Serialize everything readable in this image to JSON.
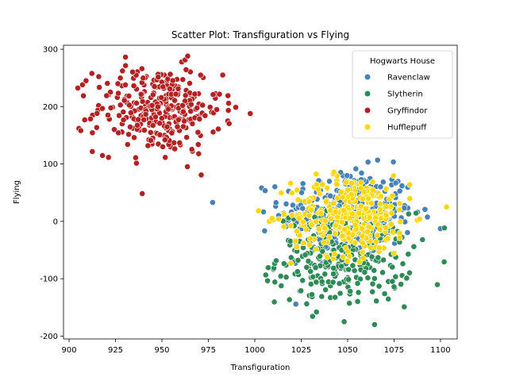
{
  "chart_data": {
    "type": "scatter",
    "title": "Scatter Plot: Transfiguration vs Flying",
    "xlabel": "Transfiguration",
    "ylabel": "Flying",
    "xlim": [
      897,
      1109
    ],
    "ylim": [
      -205,
      307
    ],
    "xticks": [
      900,
      925,
      950,
      975,
      1000,
      1025,
      1050,
      1075,
      1100
    ],
    "yticks": [
      -200,
      -100,
      0,
      100,
      200,
      300
    ],
    "grid": false,
    "legend": {
      "title": "Hogwarts House",
      "position": "top-right"
    },
    "series": [
      {
        "name": "Ravenclaw",
        "color": "#4682b4",
        "points": [],
        "cluster": {
          "center": [
            1050,
            15
          ],
          "spread": [
            18,
            38
          ],
          "n": 320
        }
      },
      {
        "name": "Slytherin",
        "color": "#2e8b57",
        "points": [],
        "cluster": {
          "center": [
            1048,
            -65
          ],
          "spread": [
            18,
            40
          ],
          "n": 300
        }
      },
      {
        "name": "Gryffindor",
        "color": "#b22222",
        "points": [],
        "cluster": {
          "center": [
            948,
            195
          ],
          "spread": [
            17,
            38
          ],
          "n": 320
        }
      },
      {
        "name": "Hufflepuff",
        "color": "#ffd700",
        "points": [],
        "cluster": {
          "center": [
            1052,
            10
          ],
          "spread": [
            16,
            35
          ],
          "n": 320
        }
      }
    ]
  }
}
